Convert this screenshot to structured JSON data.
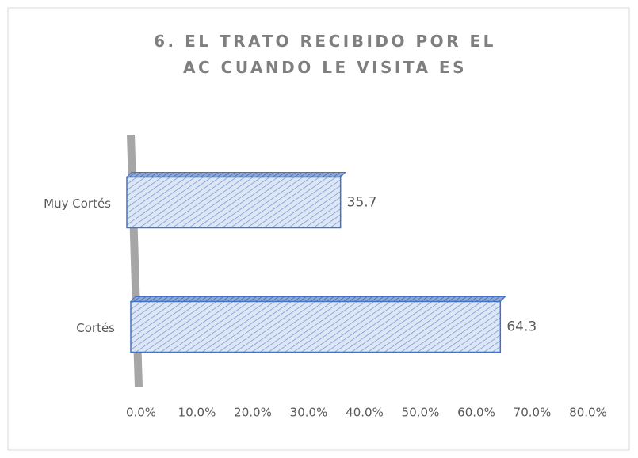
{
  "chart_data": {
    "type": "bar",
    "orientation": "horizontal",
    "title": "6. EL TRATO RECIBIDO POR EL AC CUANDO LE VISITA ES",
    "categories": [
      "Muy Cortés",
      "Cortés"
    ],
    "values": [
      35.7,
      64.3
    ],
    "color": "#4472c4",
    "xlim": [
      0,
      80
    ],
    "xticks": [
      {
        "value": 0,
        "label": "0.0%"
      },
      {
        "value": 10,
        "label": "10.0%"
      },
      {
        "value": 20,
        "label": "20.0%"
      },
      {
        "value": 30,
        "label": "30.0%"
      },
      {
        "value": 40,
        "label": "40.0%"
      },
      {
        "value": 50,
        "label": "50.0%"
      },
      {
        "value": 60,
        "label": "60.0%"
      },
      {
        "value": 70,
        "label": "70.0%"
      },
      {
        "value": 80,
        "label": "80.0%"
      }
    ],
    "grid": false
  }
}
